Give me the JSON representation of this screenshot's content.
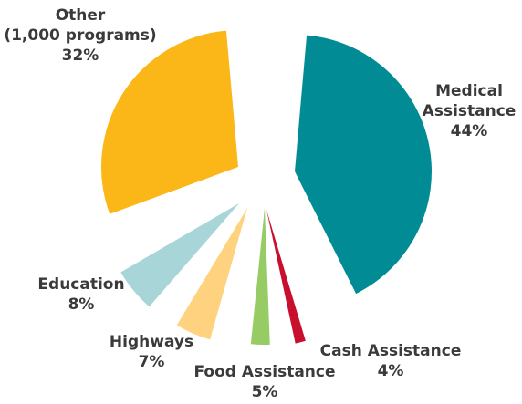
{
  "chart_data": {
    "type": "pie",
    "title": "",
    "slices": [
      {
        "label_lines": [
          "Medical",
          "Assistance"
        ],
        "value": 44,
        "value_text": "44%",
        "color": "#008B95"
      },
      {
        "label_lines": [
          "Cash Assistance"
        ],
        "value": 4,
        "value_text": "4%",
        "color": "#C8102E"
      },
      {
        "label_lines": [
          "Food Assistance"
        ],
        "value": 5,
        "value_text": "5%",
        "color": "#97CC64"
      },
      {
        "label_lines": [
          "Highways"
        ],
        "value": 7,
        "value_text": "7%",
        "color": "#FFD27F"
      },
      {
        "label_lines": [
          "Education"
        ],
        "value": 8,
        "value_text": "8%",
        "color": "#A8D5D8"
      },
      {
        "label_lines": [
          "Other",
          "(1,000 programs)"
        ],
        "value": 32,
        "value_text": "32%",
        "color": "#FBB617"
      }
    ]
  }
}
